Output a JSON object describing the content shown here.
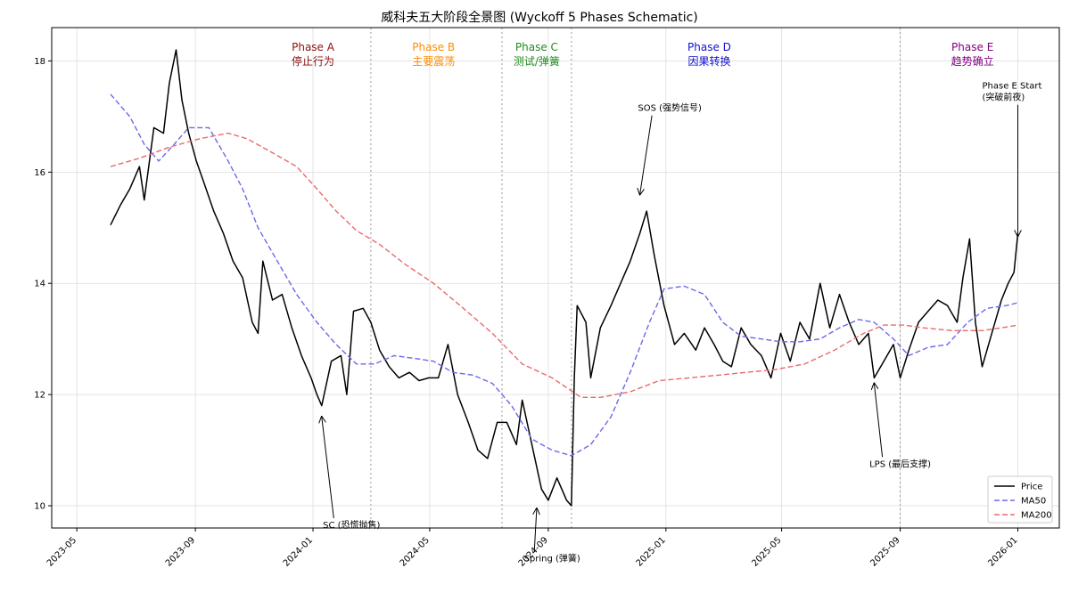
{
  "chart_data": {
    "type": "line",
    "title": "威科夫五大阶段全景图 (Wyckoff 5 Phases Schematic)",
    "xlabel": "",
    "ylabel": "",
    "grid": true,
    "xlim": [
      "2023-04-05",
      "2026-02-13"
    ],
    "ylim": [
      9.6,
      18.6
    ],
    "x_ticks": [
      "2023-05",
      "2023-09",
      "2024-01",
      "2024-05",
      "2024-09",
      "2025-01",
      "2025-05",
      "2025-09",
      "2026-01"
    ],
    "y_ticks": [
      10,
      12,
      14,
      16,
      18
    ],
    "series": [
      {
        "name": "Price",
        "color": "#000000",
        "style": "solid",
        "points": [
          [
            "2023-06-05",
            15.05
          ],
          [
            "2023-06-15",
            15.4
          ],
          [
            "2023-06-25",
            15.7
          ],
          [
            "2023-07-05",
            16.1
          ],
          [
            "2023-07-10",
            15.5
          ],
          [
            "2023-07-20",
            16.8
          ],
          [
            "2023-07-30",
            16.7
          ],
          [
            "2023-08-05",
            17.6
          ],
          [
            "2023-08-12",
            18.2
          ],
          [
            "2023-08-18",
            17.3
          ],
          [
            "2023-08-25",
            16.7
          ],
          [
            "2023-09-02",
            16.2
          ],
          [
            "2023-09-10",
            15.8
          ],
          [
            "2023-09-20",
            15.3
          ],
          [
            "2023-09-30",
            14.9
          ],
          [
            "2023-10-10",
            14.4
          ],
          [
            "2023-10-20",
            14.1
          ],
          [
            "2023-10-30",
            13.3
          ],
          [
            "2023-11-05",
            13.1
          ],
          [
            "2023-11-10",
            14.4
          ],
          [
            "2023-11-20",
            13.7
          ],
          [
            "2023-11-30",
            13.8
          ],
          [
            "2023-12-10",
            13.2
          ],
          [
            "2023-12-20",
            12.7
          ],
          [
            "2023-12-30",
            12.3
          ],
          [
            "2024-01-05",
            12.0
          ],
          [
            "2024-01-10",
            11.8
          ],
          [
            "2024-01-20",
            12.6
          ],
          [
            "2024-01-30",
            12.7
          ],
          [
            "2024-02-05",
            12.0
          ],
          [
            "2024-02-12",
            13.5
          ],
          [
            "2024-02-22",
            13.55
          ],
          [
            "2024-03-01",
            13.3
          ],
          [
            "2024-03-10",
            12.8
          ],
          [
            "2024-03-20",
            12.5
          ],
          [
            "2024-03-30",
            12.3
          ],
          [
            "2024-04-10",
            12.4
          ],
          [
            "2024-04-20",
            12.25
          ],
          [
            "2024-04-30",
            12.3
          ],
          [
            "2024-05-10",
            12.3
          ],
          [
            "2024-05-20",
            12.9
          ],
          [
            "2024-05-30",
            12.0
          ],
          [
            "2024-06-10",
            11.5
          ],
          [
            "2024-06-20",
            11.0
          ],
          [
            "2024-06-30",
            10.85
          ],
          [
            "2024-07-10",
            11.5
          ],
          [
            "2024-07-20",
            11.5
          ],
          [
            "2024-07-30",
            11.1
          ],
          [
            "2024-08-05",
            11.9
          ],
          [
            "2024-08-15",
            11.1
          ],
          [
            "2024-08-25",
            10.3
          ],
          [
            "2024-09-01",
            10.1
          ],
          [
            "2024-09-10",
            10.5
          ],
          [
            "2024-09-20",
            10.1
          ],
          [
            "2024-09-25",
            10.0
          ],
          [
            "2024-09-28",
            12.3
          ],
          [
            "2024-10-01",
            13.6
          ],
          [
            "2024-10-10",
            13.3
          ],
          [
            "2024-10-15",
            12.3
          ],
          [
            "2024-10-25",
            13.2
          ],
          [
            "2024-11-05",
            13.6
          ],
          [
            "2024-11-15",
            14.0
          ],
          [
            "2024-11-25",
            14.4
          ],
          [
            "2024-12-05",
            14.9
          ],
          [
            "2024-12-12",
            15.3
          ],
          [
            "2024-12-20",
            14.5
          ],
          [
            "2024-12-30",
            13.6
          ],
          [
            "2025-01-10",
            12.9
          ],
          [
            "2025-01-20",
            13.1
          ],
          [
            "2025-02-01",
            12.8
          ],
          [
            "2025-02-10",
            13.2
          ],
          [
            "2025-02-20",
            12.9
          ],
          [
            "2025-03-01",
            12.6
          ],
          [
            "2025-03-10",
            12.5
          ],
          [
            "2025-03-20",
            13.2
          ],
          [
            "2025-03-30",
            12.9
          ],
          [
            "2025-04-10",
            12.7
          ],
          [
            "2025-04-20",
            12.3
          ],
          [
            "2025-04-30",
            13.1
          ],
          [
            "2025-05-10",
            12.6
          ],
          [
            "2025-05-20",
            13.3
          ],
          [
            "2025-05-30",
            13.0
          ],
          [
            "2025-06-10",
            14.0
          ],
          [
            "2025-06-20",
            13.2
          ],
          [
            "2025-06-30",
            13.8
          ],
          [
            "2025-07-10",
            13.3
          ],
          [
            "2025-07-20",
            12.9
          ],
          [
            "2025-07-30",
            13.1
          ],
          [
            "2025-08-05",
            12.3
          ],
          [
            "2025-08-15",
            12.6
          ],
          [
            "2025-08-25",
            12.9
          ],
          [
            "2025-09-01",
            12.3
          ],
          [
            "2025-09-10",
            12.8
          ],
          [
            "2025-09-20",
            13.3
          ],
          [
            "2025-09-30",
            13.5
          ],
          [
            "2025-10-10",
            13.7
          ],
          [
            "2025-10-20",
            13.6
          ],
          [
            "2025-10-30",
            13.3
          ],
          [
            "2025-11-05",
            14.1
          ],
          [
            "2025-11-12",
            14.8
          ],
          [
            "2025-11-18",
            13.3
          ],
          [
            "2025-11-25",
            12.5
          ],
          [
            "2025-12-05",
            13.1
          ],
          [
            "2025-12-15",
            13.7
          ],
          [
            "2025-12-22",
            14.0
          ],
          [
            "2025-12-28",
            14.2
          ],
          [
            "2026-01-01",
            14.9
          ]
        ]
      },
      {
        "name": "MA50",
        "color": "#6a6aea",
        "style": "dashed",
        "points": [
          [
            "2023-06-05",
            17.4
          ],
          [
            "2023-06-25",
            17.0
          ],
          [
            "2023-07-10",
            16.5
          ],
          [
            "2023-07-25",
            16.2
          ],
          [
            "2023-08-10",
            16.5
          ],
          [
            "2023-08-25",
            16.8
          ],
          [
            "2023-09-15",
            16.8
          ],
          [
            "2023-10-05",
            16.2
          ],
          [
            "2023-10-20",
            15.7
          ],
          [
            "2023-11-05",
            15.0
          ],
          [
            "2023-11-25",
            14.4
          ],
          [
            "2023-12-15",
            13.8
          ],
          [
            "2024-01-05",
            13.3
          ],
          [
            "2024-01-25",
            12.9
          ],
          [
            "2024-02-15",
            12.55
          ],
          [
            "2024-03-05",
            12.55
          ],
          [
            "2024-03-25",
            12.7
          ],
          [
            "2024-04-15",
            12.65
          ],
          [
            "2024-05-05",
            12.6
          ],
          [
            "2024-05-25",
            12.4
          ],
          [
            "2024-06-15",
            12.35
          ],
          [
            "2024-07-05",
            12.2
          ],
          [
            "2024-07-25",
            11.8
          ],
          [
            "2024-08-15",
            11.2
          ],
          [
            "2024-09-05",
            11.0
          ],
          [
            "2024-09-25",
            10.9
          ],
          [
            "2024-10-15",
            11.1
          ],
          [
            "2024-11-05",
            11.6
          ],
          [
            "2024-11-25",
            12.4
          ],
          [
            "2024-12-15",
            13.3
          ],
          [
            "2024-12-30",
            13.9
          ],
          [
            "2025-01-20",
            13.95
          ],
          [
            "2025-02-10",
            13.8
          ],
          [
            "2025-03-01",
            13.3
          ],
          [
            "2025-03-20",
            13.05
          ],
          [
            "2025-04-10",
            13.0
          ],
          [
            "2025-04-30",
            12.95
          ],
          [
            "2025-05-20",
            12.95
          ],
          [
            "2025-06-10",
            13.0
          ],
          [
            "2025-06-30",
            13.2
          ],
          [
            "2025-07-20",
            13.35
          ],
          [
            "2025-08-05",
            13.3
          ],
          [
            "2025-08-25",
            13.0
          ],
          [
            "2025-09-10",
            12.7
          ],
          [
            "2025-09-30",
            12.85
          ],
          [
            "2025-10-20",
            12.9
          ],
          [
            "2025-11-10",
            13.3
          ],
          [
            "2025-11-30",
            13.55
          ],
          [
            "2025-12-20",
            13.6
          ],
          [
            "2026-01-01",
            13.65
          ]
        ]
      },
      {
        "name": "MA200",
        "color": "#ea6a6a",
        "style": "dashed",
        "points": [
          [
            "2023-06-05",
            16.1
          ],
          [
            "2023-07-05",
            16.25
          ],
          [
            "2023-08-05",
            16.45
          ],
          [
            "2023-09-05",
            16.6
          ],
          [
            "2023-10-05",
            16.7
          ],
          [
            "2023-10-25",
            16.6
          ],
          [
            "2023-11-25",
            16.3
          ],
          [
            "2023-12-15",
            16.1
          ],
          [
            "2024-01-05",
            15.7
          ],
          [
            "2024-01-25",
            15.3
          ],
          [
            "2024-02-15",
            14.95
          ],
          [
            "2024-03-10",
            14.7
          ],
          [
            "2024-04-05",
            14.35
          ],
          [
            "2024-05-05",
            14.0
          ],
          [
            "2024-06-05",
            13.55
          ],
          [
            "2024-07-05",
            13.1
          ],
          [
            "2024-08-05",
            12.55
          ],
          [
            "2024-09-05",
            12.3
          ],
          [
            "2024-10-05",
            11.95
          ],
          [
            "2024-10-25",
            11.95
          ],
          [
            "2024-11-25",
            12.05
          ],
          [
            "2024-12-25",
            12.25
          ],
          [
            "2025-01-25",
            12.3
          ],
          [
            "2025-02-25",
            12.35
          ],
          [
            "2025-03-25",
            12.4
          ],
          [
            "2025-04-25",
            12.45
          ],
          [
            "2025-05-25",
            12.55
          ],
          [
            "2025-06-25",
            12.8
          ],
          [
            "2025-07-25",
            13.1
          ],
          [
            "2025-08-15",
            13.25
          ],
          [
            "2025-09-05",
            13.25
          ],
          [
            "2025-09-25",
            13.2
          ],
          [
            "2025-10-25",
            13.15
          ],
          [
            "2025-11-25",
            13.15
          ],
          [
            "2025-12-15",
            13.2
          ],
          [
            "2026-01-01",
            13.25
          ]
        ]
      }
    ],
    "phase_boundaries": [
      "2024-03-01",
      "2024-07-15",
      "2024-09-25",
      "2025-09-01"
    ],
    "phases": [
      {
        "name": "Phase A",
        "desc": "停止行为",
        "x": "2024-01-01",
        "color": "#8b1010"
      },
      {
        "name": "Phase B",
        "desc": "主要震荡",
        "x": "2024-05-05",
        "color": "#ff8c00"
      },
      {
        "name": "Phase C",
        "desc": "测试/弹簧",
        "x": "2024-08-20",
        "color": "#228b22"
      },
      {
        "name": "Phase D",
        "desc": "因果转换",
        "x": "2025-02-15",
        "color": "#1010cc"
      },
      {
        "name": "Phase E",
        "desc": "趋势确立",
        "x": "2025-11-15",
        "color": "#800080"
      }
    ],
    "annotations": [
      {
        "lines": [
          "SC (恐慌抛售)"
        ],
        "color": "#000000",
        "text_at": [
          "2024-02-10",
          9.6
        ],
        "arrow_to": [
          "2024-01-10",
          11.6
        ],
        "anchor": "middle"
      },
      {
        "lines": [
          "SOS (强势信号)"
        ],
        "color": "#000000",
        "text_at": [
          "2025-01-05",
          17.1
        ],
        "arrow_to": [
          "2024-12-05",
          15.6
        ],
        "anchor": "middle"
      },
      {
        "lines": [
          "Spring (弹簧)"
        ],
        "color": "#228b22",
        "text_at": [
          "2024-09-05",
          9.0
        ],
        "arrow_to": [
          "2024-08-20",
          9.95
        ],
        "anchor": "middle"
      },
      {
        "lines": [
          "LPS (最后支撑)"
        ],
        "color": "#000000",
        "text_at": [
          "2025-09-01",
          10.7
        ],
        "arrow_to": [
          "2025-08-05",
          12.2
        ],
        "anchor": "middle"
      },
      {
        "lines": [
          "Phase E Start",
          "(突破前夜)"
        ],
        "color": "#000000",
        "text_at": [
          "2025-11-25",
          17.5
        ],
        "arrow_to": [
          "2026-01-01",
          14.85
        ],
        "anchor": "start"
      }
    ],
    "legend": {
      "position": "lower-right",
      "entries": [
        "Price",
        "MA50",
        "MA200"
      ]
    }
  }
}
